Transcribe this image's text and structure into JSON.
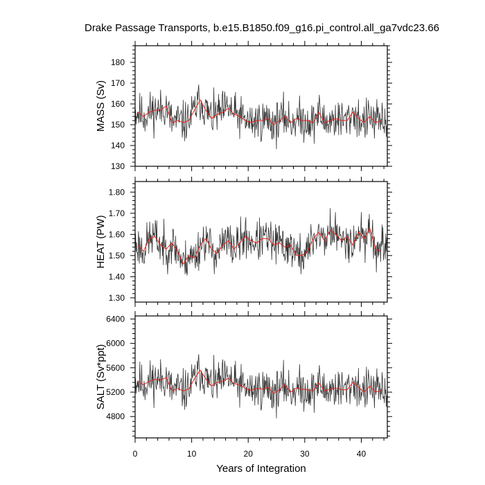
{
  "title": "Drake Passage Transports, b.e15.B1850.f09_g16.pi_control.all_ga7vdc23.66",
  "x_axis": {
    "label": "Years of Integration",
    "range": [
      0,
      44.6
    ],
    "ticks": [
      0,
      10,
      20,
      30,
      40
    ],
    "tick_labels": [
      "0",
      "10",
      "20",
      "30",
      "40"
    ]
  },
  "colors": {
    "monthly_series": "#333333",
    "annual_mean": "#e8211a",
    "axes": "#000000"
  },
  "chart_data": [
    {
      "type": "line",
      "ylabel": "MASS (Sv)",
      "ylim": [
        130,
        188
      ],
      "yticks": [
        130,
        140,
        150,
        160,
        170,
        180
      ],
      "ytick_labels": [
        "130",
        "140",
        "150",
        "160",
        "170",
        "180"
      ],
      "series": [
        {
          "name": "",
          "role": "monthly",
          "seed": 11
        },
        {
          "name": "",
          "role": "annual-mean",
          "x": [
            0.5,
            1.5,
            2.5,
            3.5,
            4.5,
            5.5,
            6.5,
            7.5,
            8.5,
            9.5,
            10.5,
            11.5,
            12.5,
            13.5,
            14.5,
            15.5,
            16.5,
            17.5,
            18.5,
            19.5,
            20.5,
            21.5,
            22.5,
            23.5,
            24.5,
            25.5,
            26.5,
            27.5,
            28.5,
            29.5,
            30.5,
            31.5,
            32.5,
            33.5,
            34.5,
            35.5,
            36.5,
            37.5,
            38.5,
            39.5,
            40.5,
            41.5,
            42.5,
            43.5
          ],
          "values": [
            156,
            154,
            156,
            157,
            157,
            159,
            151,
            152,
            151,
            152,
            157,
            162,
            157,
            153,
            155,
            156,
            158,
            155,
            154,
            152,
            151,
            152,
            152,
            153,
            150,
            152,
            154,
            151,
            153,
            152,
            152,
            151,
            156,
            151,
            152,
            153,
            152,
            152,
            156,
            153,
            151,
            154,
            151,
            152
          ]
        }
      ]
    },
    {
      "type": "line",
      "ylabel": "HEAT (PW)",
      "ylim": [
        1.28,
        1.85
      ],
      "yticks": [
        1.3,
        1.4,
        1.5,
        1.6,
        1.7,
        1.8
      ],
      "ytick_labels": [
        "1.30",
        "1.40",
        "1.50",
        "1.60",
        "1.70",
        "1.80"
      ],
      "series": [
        {
          "name": "",
          "role": "monthly",
          "seed": 23
        },
        {
          "name": "",
          "role": "annual-mean",
          "x": [
            0.5,
            1.5,
            2.5,
            3.5,
            4.5,
            5.5,
            6.5,
            7.5,
            8.5,
            9.5,
            10.5,
            11.5,
            12.5,
            13.5,
            14.5,
            15.5,
            16.5,
            17.5,
            18.5,
            19.5,
            20.5,
            21.5,
            22.5,
            23.5,
            24.5,
            25.5,
            26.5,
            27.5,
            28.5,
            29.5,
            30.5,
            31.5,
            32.5,
            33.5,
            34.5,
            35.5,
            36.5,
            37.5,
            38.5,
            39.5,
            40.5,
            41.5,
            42.5,
            43.5
          ],
          "values": [
            1.55,
            1.52,
            1.58,
            1.59,
            1.55,
            1.53,
            1.56,
            1.52,
            1.46,
            1.5,
            1.49,
            1.55,
            1.58,
            1.53,
            1.51,
            1.55,
            1.57,
            1.53,
            1.56,
            1.59,
            1.57,
            1.56,
            1.58,
            1.58,
            1.55,
            1.56,
            1.54,
            1.55,
            1.5,
            1.5,
            1.52,
            1.58,
            1.61,
            1.57,
            1.62,
            1.6,
            1.57,
            1.59,
            1.55,
            1.61,
            1.58,
            1.63,
            1.53,
            1.52
          ]
        }
      ]
    },
    {
      "type": "line",
      "ylabel": "SALT (Sv*ppt)",
      "ylim": [
        4450,
        6450
      ],
      "yticks": [
        4800,
        5200,
        5600,
        6000,
        6400
      ],
      "ytick_labels": [
        "4800",
        "5200",
        "5600",
        "6000",
        "6400"
      ],
      "series": [
        {
          "name": "",
          "role": "monthly",
          "seed": 11
        },
        {
          "name": "",
          "role": "annual-mean",
          "x": [
            0.5,
            1.5,
            2.5,
            3.5,
            4.5,
            5.5,
            6.5,
            7.5,
            8.5,
            9.5,
            10.5,
            11.5,
            12.5,
            13.5,
            14.5,
            15.5,
            16.5,
            17.5,
            18.5,
            19.5,
            20.5,
            21.5,
            22.5,
            23.5,
            24.5,
            25.5,
            26.5,
            27.5,
            28.5,
            29.5,
            30.5,
            31.5,
            32.5,
            33.5,
            34.5,
            35.5,
            36.5,
            37.5,
            38.5,
            39.5,
            40.5,
            41.5,
            42.5,
            43.5
          ],
          "values": [
            5380,
            5320,
            5380,
            5410,
            5400,
            5440,
            5220,
            5260,
            5220,
            5250,
            5420,
            5560,
            5420,
            5300,
            5360,
            5380,
            5430,
            5340,
            5320,
            5260,
            5230,
            5260,
            5250,
            5280,
            5180,
            5240,
            5320,
            5200,
            5270,
            5250,
            5240,
            5220,
            5350,
            5220,
            5250,
            5270,
            5240,
            5240,
            5360,
            5280,
            5200,
            5300,
            5200,
            5230
          ]
        }
      ]
    }
  ]
}
